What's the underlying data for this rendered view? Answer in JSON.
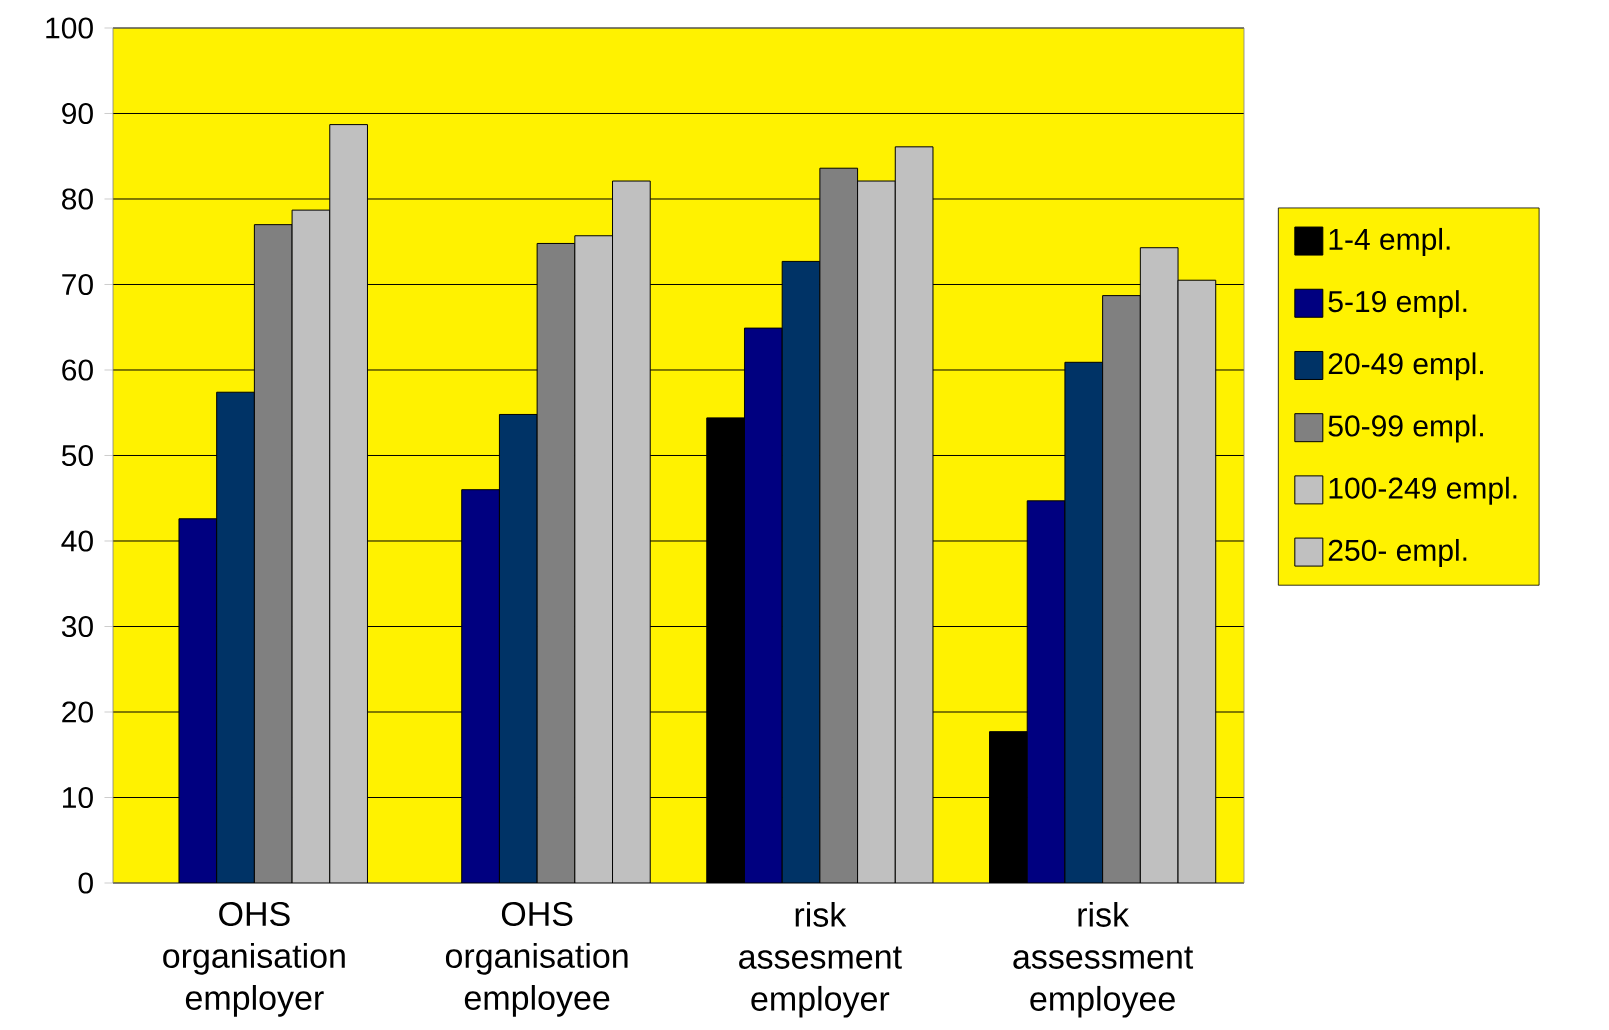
{
  "chart_data": {
    "type": "bar",
    "categories": [
      "OHS organisation employer",
      "OHS organisation employee",
      "risk assesment employer",
      "risk assessment employee"
    ],
    "series": [
      {
        "name": "1-4 empl.",
        "color": "#000000",
        "values": [
          null,
          null,
          54.4,
          17.7
        ]
      },
      {
        "name": "5-19 empl.",
        "color": "#000080",
        "values": [
          42.6,
          46.0,
          64.9,
          44.7
        ]
      },
      {
        "name": "20-49 empl.",
        "color": "#003366",
        "values": [
          57.4,
          54.8,
          72.7,
          60.9
        ]
      },
      {
        "name": "50-99 empl.",
        "color": "#808080",
        "values": [
          77.0,
          74.8,
          83.6,
          68.7
        ]
      },
      {
        "name": "100-249 empl.",
        "color": "#c0c0c0",
        "values": [
          78.7,
          75.7,
          82.1,
          74.3
        ]
      },
      {
        "name": "250- empl.",
        "color": "#c0c0c0",
        "values": [
          88.7,
          82.1,
          86.1,
          70.5
        ]
      }
    ],
    "ylim": [
      0,
      100
    ],
    "yticks": [
      0,
      10,
      20,
      30,
      40,
      50,
      60,
      70,
      80,
      90,
      100
    ],
    "grid": "y",
    "legend": "right"
  }
}
